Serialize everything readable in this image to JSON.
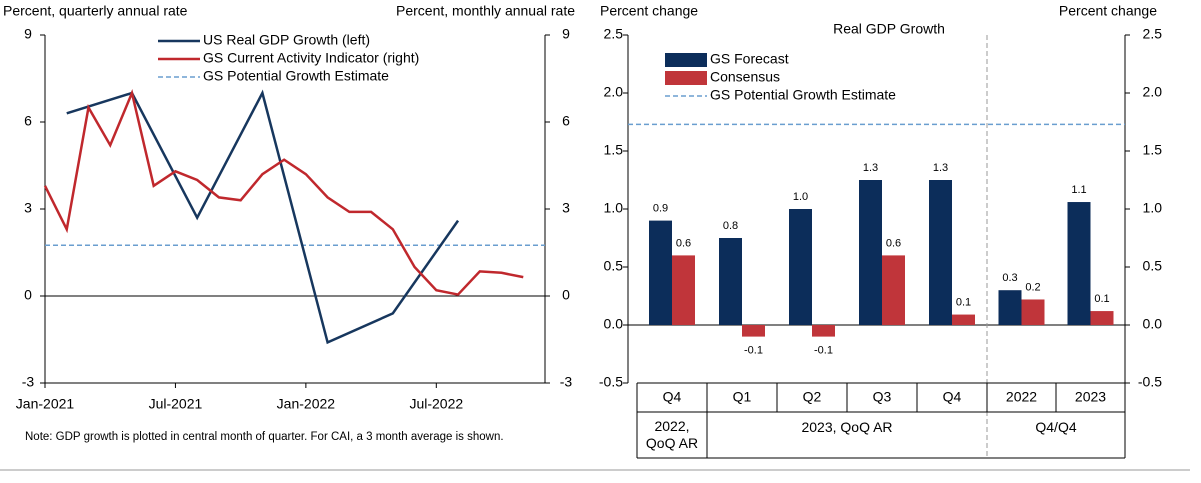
{
  "chart_data": [
    {
      "type": "line",
      "y_label_left": "Percent, quarterly annual rate",
      "y_label_right": "Percent, monthly annual rate",
      "note": "Note: GDP growth is plotted in central month of quarter. For CAI, a 3 month average is shown.",
      "xlim": [
        "2021-01",
        "2022-12"
      ],
      "xticks": [
        {
          "value": "2021-01",
          "label": "Jan-2021"
        },
        {
          "value": "2021-07",
          "label": "Jul-2021"
        },
        {
          "value": "2022-01",
          "label": "Jan-2022"
        },
        {
          "value": "2022-07",
          "label": "Jul-2022"
        }
      ],
      "ylim": [
        -3,
        9
      ],
      "yticks": [
        -3,
        0,
        3,
        6,
        9
      ],
      "y2lim": [
        -3,
        9
      ],
      "y2ticks": [
        -3,
        0,
        3,
        6,
        9
      ],
      "series": [
        {
          "name": "US Real GDP Growth (left)",
          "color": "#17375e",
          "x": [
            "2021-02",
            "2021-05",
            "2021-08",
            "2021-11",
            "2022-02",
            "2022-05",
            "2022-08"
          ],
          "values": [
            6.3,
            7.0,
            2.7,
            7.0,
            -1.6,
            -0.6,
            2.6
          ]
        },
        {
          "name": "GS Current Activity Indicator (right)",
          "color": "#c0282d",
          "axis": "y2",
          "x": [
            "2021-01",
            "2021-02",
            "2021-03",
            "2021-04",
            "2021-05",
            "2021-06",
            "2021-07",
            "2021-08",
            "2021-09",
            "2021-10",
            "2021-11",
            "2021-12",
            "2022-01",
            "2022-02",
            "2022-03",
            "2022-04",
            "2022-05",
            "2022-06",
            "2022-07",
            "2022-08",
            "2022-09",
            "2022-10",
            "2022-11"
          ],
          "values": [
            3.8,
            2.3,
            6.5,
            5.2,
            7.0,
            3.8,
            4.3,
            4.0,
            3.4,
            3.3,
            4.2,
            4.7,
            4.2,
            3.4,
            2.9,
            2.9,
            2.3,
            1.0,
            0.2,
            0.05,
            0.85,
            0.8,
            0.65
          ]
        }
      ],
      "reference_lines": [
        {
          "name": "GS Potential Growth Estimate",
          "color": "#6a9ecf",
          "value": 1.75
        }
      ]
    },
    {
      "type": "bar",
      "title": "Real GDP Growth",
      "y_label_left": "Percent change",
      "y_label_right": "Percent change",
      "categories": [
        "Q4",
        "Q1",
        "Q2",
        "Q3",
        "Q4",
        "2022",
        "2023"
      ],
      "groups": [
        "2022, QoQ AR",
        "2023, QoQ AR",
        "Q4/Q4"
      ],
      "ylim": [
        -0.5,
        2.5
      ],
      "yticks": [
        {
          "value": -0.5,
          "label": "-0.5"
        },
        {
          "value": 0,
          "label": "0.0"
        },
        {
          "value": 0.5,
          "label": "0.5"
        },
        {
          "value": 1,
          "label": "1.0"
        },
        {
          "value": 1.5,
          "label": "1.5"
        },
        {
          "value": 2,
          "label": "2.0"
        },
        {
          "value": 2.5,
          "label": "2.5"
        }
      ],
      "series": [
        {
          "name": "GS Forecast",
          "color": "#0c2d5a",
          "values": [
            0.9,
            0.75,
            1.0,
            1.25,
            1.25,
            0.3,
            1.06
          ],
          "value_labels": [
            "0.9",
            "0.8",
            "1.0",
            "1.3",
            "1.3",
            "0.3",
            "1.1"
          ]
        },
        {
          "name": "Consensus",
          "color": "#c0353a",
          "values": [
            0.6,
            -0.1,
            -0.1,
            0.6,
            0.09,
            0.22,
            0.12
          ],
          "value_labels": [
            "0.6",
            "-0.1",
            "-0.1",
            "0.6",
            "0.1",
            "0.2",
            "0.1"
          ]
        }
      ],
      "reference_lines": [
        {
          "name": "GS Potential Growth Estimate",
          "color": "#6a9ecf",
          "value": 1.73
        }
      ]
    }
  ]
}
